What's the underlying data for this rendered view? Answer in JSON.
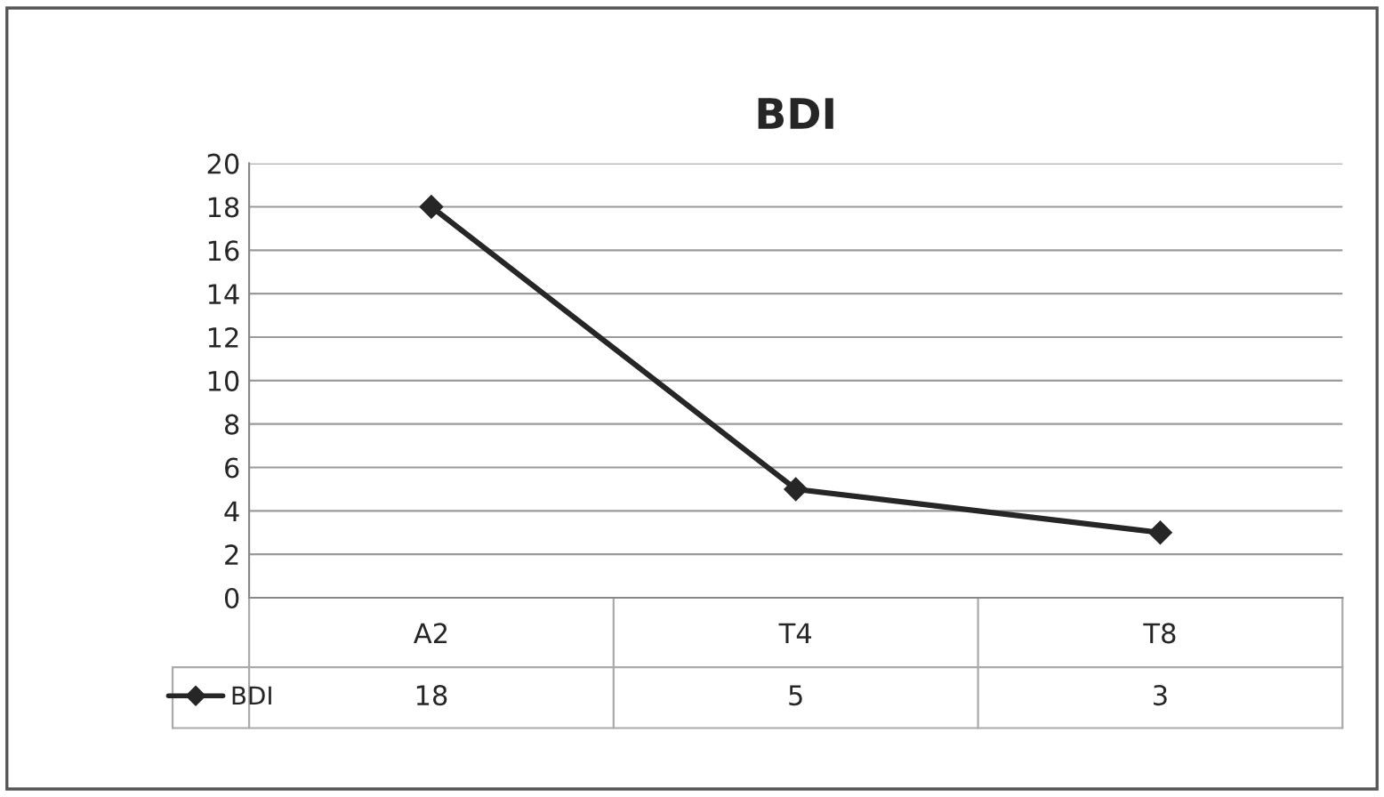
{
  "chart_data": {
    "type": "line",
    "title": "BDI",
    "categories": [
      "A2",
      "T4",
      "T8"
    ],
    "series": [
      {
        "name": "BDI",
        "color": "#262626",
        "values": [
          18,
          5,
          3
        ]
      }
    ],
    "ylim": [
      0,
      20
    ],
    "yticks": [
      0,
      2,
      4,
      6,
      8,
      10,
      12,
      14,
      16,
      18,
      20
    ],
    "grid": "y",
    "marker": "diamond",
    "line_style": "solid",
    "legend": "bottom left",
    "data_labels": true
  }
}
